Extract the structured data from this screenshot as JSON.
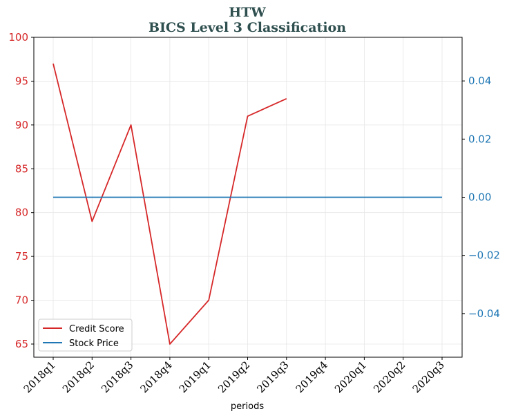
{
  "chart_data": {
    "type": "line",
    "title": "HTW",
    "subtitle": "BICS Level 3 Classification",
    "xlabel": "periods",
    "categories": [
      "2018q1",
      "2018q2",
      "2018q3",
      "2018q4",
      "2019q1",
      "2019q2",
      "2019q3",
      "2019q4",
      "2020q1",
      "2020q2",
      "2020q3"
    ],
    "left_axis": {
      "ylim": [
        63.5,
        100
      ],
      "ticks": [
        "65",
        "70",
        "75",
        "80",
        "85",
        "90",
        "95",
        "100"
      ],
      "tick_values": [
        65,
        70,
        75,
        80,
        85,
        90,
        95,
        100
      ],
      "color": "#d62728"
    },
    "right_axis": {
      "ylim": [
        -0.055,
        0.055
      ],
      "ticks": [
        "−0.04",
        "−0.02",
        "0.00",
        "0.02",
        "0.04"
      ],
      "tick_values": [
        -0.04,
        -0.02,
        0,
        0.02,
        0.04
      ],
      "color": "#1f77b4"
    },
    "grid": true,
    "legend_position": "lower-left",
    "series": [
      {
        "name": "Credit Score",
        "axis": "left",
        "color": "#d62728",
        "values": [
          97,
          79,
          90,
          65,
          70,
          91,
          93,
          null,
          null,
          null,
          null
        ]
      },
      {
        "name": "Stock Price",
        "axis": "right",
        "color": "#1f77b4",
        "values": [
          0,
          0,
          0,
          0,
          0,
          0,
          0,
          0,
          0,
          0,
          0
        ]
      }
    ]
  }
}
